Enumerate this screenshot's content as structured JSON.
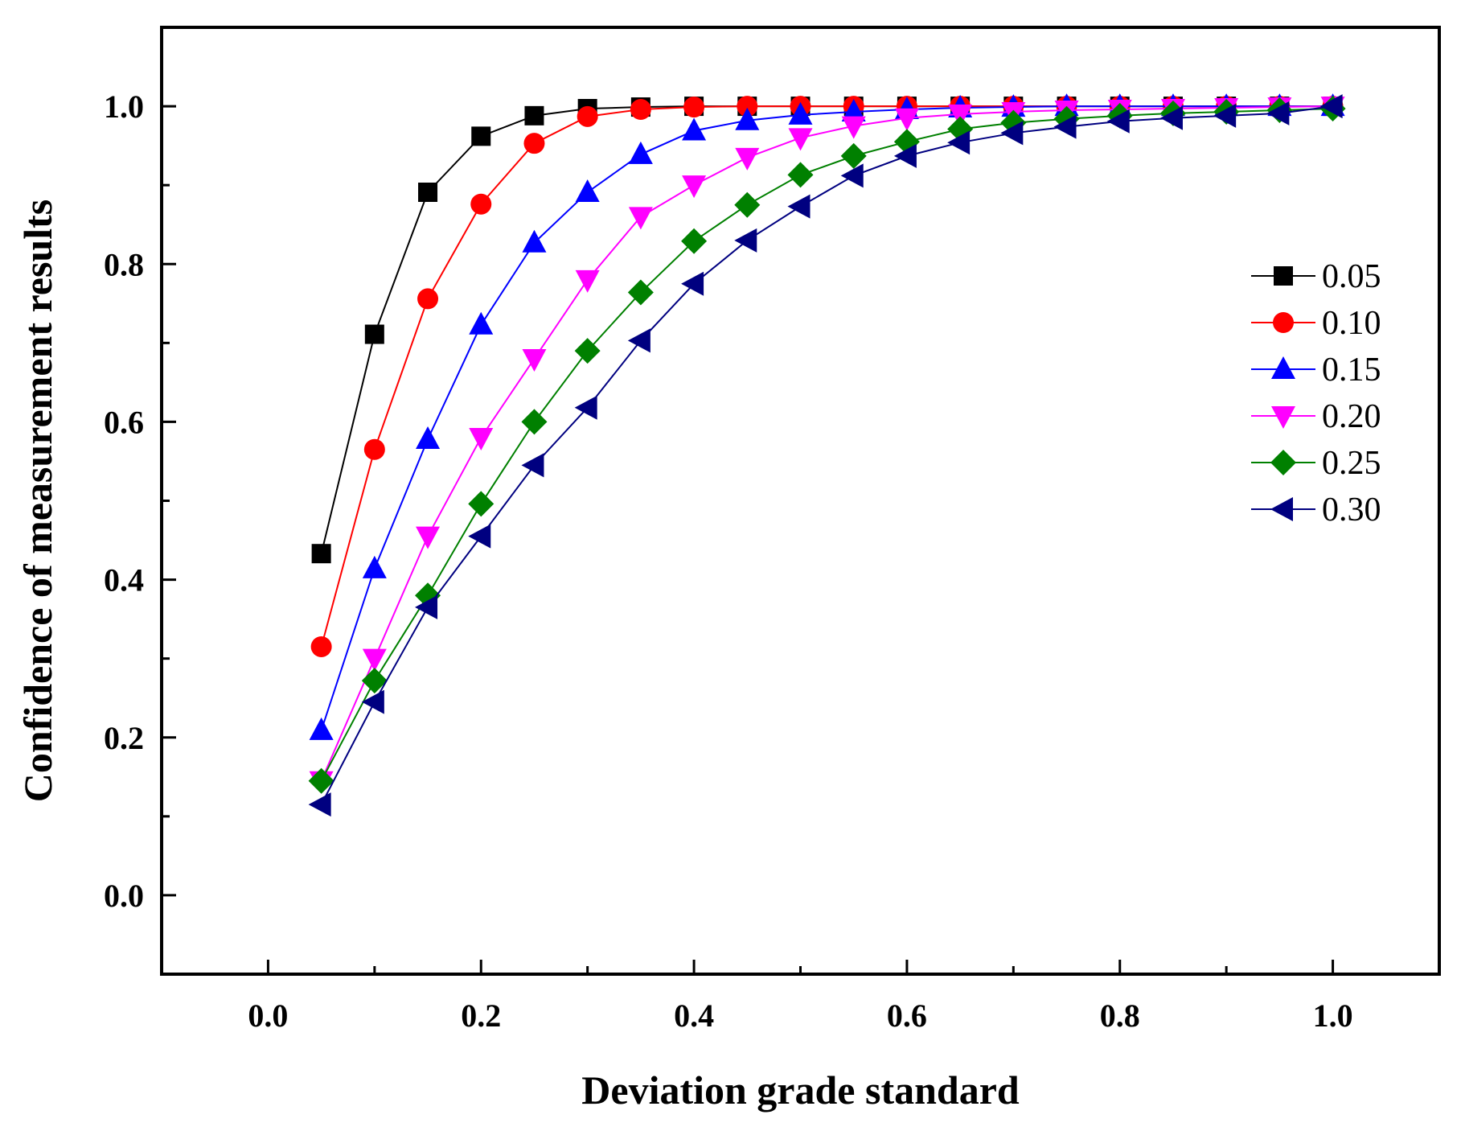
{
  "chart_data": {
    "type": "line",
    "title": "",
    "xlabel": "Deviation grade standard",
    "ylabel": "Confidence of measurement results",
    "xlim": [
      -0.1,
      1.1
    ],
    "ylim": [
      -0.1,
      1.1
    ],
    "xticks": [
      0.0,
      0.2,
      0.4,
      0.6,
      0.8,
      1.0
    ],
    "xtick_labels": [
      "0.0",
      "0.2",
      "0.4",
      "0.6",
      "0.8",
      "1.0"
    ],
    "yticks": [
      0.0,
      0.2,
      0.4,
      0.6,
      0.8,
      1.0
    ],
    "ytick_labels": [
      "0.0",
      "0.2",
      "0.4",
      "0.6",
      "0.8",
      "1.0"
    ],
    "grid": false,
    "legend_position": "right",
    "x": [
      0.05,
      0.1,
      0.15,
      0.2,
      0.25,
      0.3,
      0.35,
      0.4,
      0.45,
      0.5,
      0.55,
      0.6,
      0.65,
      0.7,
      0.75,
      0.8,
      0.85,
      0.9,
      0.95,
      1.0
    ],
    "series": [
      {
        "name": "0.05",
        "color": "#000000",
        "marker": "square",
        "values": [
          0.433,
          0.711,
          0.891,
          0.962,
          0.988,
          0.997,
          0.999,
          1.0,
          1.0,
          1.0,
          1.0,
          1.0,
          1.0,
          1.0,
          1.0,
          1.0,
          1.0,
          1.0,
          1.0,
          1.0
        ]
      },
      {
        "name": "0.10",
        "color": "#ff0000",
        "marker": "circle",
        "values": [
          0.315,
          0.565,
          0.756,
          0.876,
          0.953,
          0.987,
          0.996,
          0.999,
          1.0,
          1.0,
          1.0,
          1.0,
          1.0,
          1.0,
          1.0,
          1.0,
          1.0,
          1.0,
          1.0,
          1.0
        ]
      },
      {
        "name": "0.15",
        "color": "#0000ff",
        "marker": "triangle-up",
        "values": [
          0.209,
          0.414,
          0.578,
          0.723,
          0.827,
          0.891,
          0.939,
          0.969,
          0.982,
          0.989,
          0.993,
          0.996,
          0.998,
          0.999,
          1.0,
          1.0,
          1.0,
          1.0,
          1.0,
          1.0
        ]
      },
      {
        "name": "0.20",
        "color": "#ff00ff",
        "marker": "triangle-down",
        "values": [
          0.145,
          0.3,
          0.455,
          0.58,
          0.68,
          0.78,
          0.86,
          0.9,
          0.935,
          0.96,
          0.975,
          0.985,
          0.99,
          0.993,
          0.995,
          0.996,
          0.997,
          0.998,
          0.999,
          1.0
        ]
      },
      {
        "name": "0.25",
        "color": "#008000",
        "marker": "diamond",
        "values": [
          0.145,
          0.272,
          0.38,
          0.496,
          0.6,
          0.69,
          0.764,
          0.829,
          0.875,
          0.913,
          0.937,
          0.955,
          0.971,
          0.979,
          0.984,
          0.988,
          0.991,
          0.993,
          0.995,
          0.997
        ]
      },
      {
        "name": "0.30",
        "color": "#000080",
        "marker": "triangle-left",
        "values": [
          0.115,
          0.245,
          0.365,
          0.455,
          0.545,
          0.618,
          0.703,
          0.775,
          0.83,
          0.873,
          0.912,
          0.937,
          0.954,
          0.966,
          0.974,
          0.981,
          0.985,
          0.988,
          0.991,
          1.0
        ]
      }
    ]
  }
}
